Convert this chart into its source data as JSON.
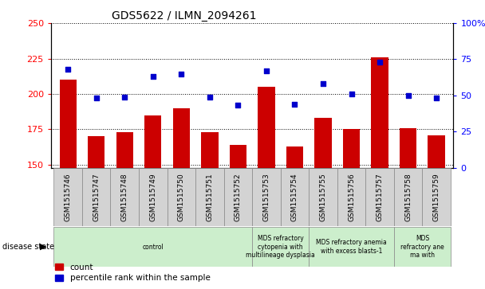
{
  "title": "GDS5622 / ILMN_2094261",
  "samples": [
    "GSM1515746",
    "GSM1515747",
    "GSM1515748",
    "GSM1515749",
    "GSM1515750",
    "GSM1515751",
    "GSM1515752",
    "GSM1515753",
    "GSM1515754",
    "GSM1515755",
    "GSM1515756",
    "GSM1515757",
    "GSM1515758",
    "GSM1515759"
  ],
  "counts": [
    210,
    170,
    173,
    185,
    190,
    173,
    164,
    205,
    163,
    183,
    175,
    226,
    176,
    171
  ],
  "percentiles": [
    68,
    48,
    49,
    63,
    65,
    49,
    43,
    67,
    44,
    58,
    51,
    73,
    50,
    48
  ],
  "ylim_left": [
    148,
    250
  ],
  "ylim_right": [
    0,
    100
  ],
  "yticks_left": [
    150,
    175,
    200,
    225,
    250
  ],
  "yticks_right": [
    0,
    25,
    50,
    75,
    100
  ],
  "bar_color": "#cc0000",
  "dot_color": "#0000cc",
  "disease_state_bg": "#cceecc",
  "sample_bg": "#d3d3d3",
  "groups": [
    {
      "label": "control",
      "start": 0,
      "end": 7
    },
    {
      "label": "MDS refractory\ncytopenia with\nmultilineage dysplasia",
      "start": 7,
      "end": 9
    },
    {
      "label": "MDS refractory anemia\nwith excess blasts-1",
      "start": 9,
      "end": 12
    },
    {
      "label": "MDS\nrefractory ane\nma with",
      "start": 12,
      "end": 14
    }
  ],
  "disease_state_label": "disease state",
  "legend_count": "count",
  "legend_percentile": "percentile rank within the sample"
}
